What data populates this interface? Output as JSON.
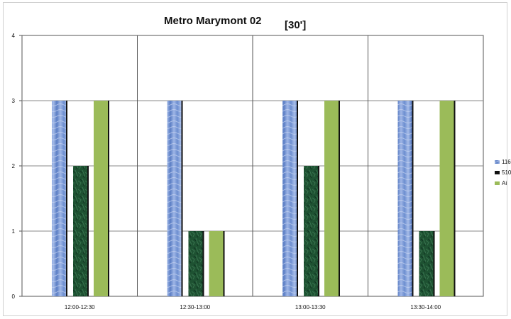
{
  "chart_data": {
    "type": "bar",
    "title": "Metro Marymont 02",
    "subtitle": "[30']",
    "xlabel": "",
    "ylabel": "",
    "categories": [
      "12:00-12:30",
      "12:30-13:00",
      "13:00-13:30",
      "13:30-14:00"
    ],
    "series": [
      {
        "name": "116",
        "values": [
          3,
          3,
          3,
          3
        ],
        "color": "#6f8fcf"
      },
      {
        "name": "510",
        "values": [
          2,
          1,
          2,
          1
        ],
        "color": "#1e5232"
      },
      {
        "name": "Ai",
        "values": [
          3,
          1,
          3,
          3
        ],
        "color": "#9bbb59"
      }
    ],
    "ylim": [
      0,
      4
    ],
    "yticks": [
      "0",
      "1",
      "2",
      "3",
      "4"
    ],
    "grid": true,
    "vertical_category_gridlines": true,
    "legend_position": "right"
  }
}
